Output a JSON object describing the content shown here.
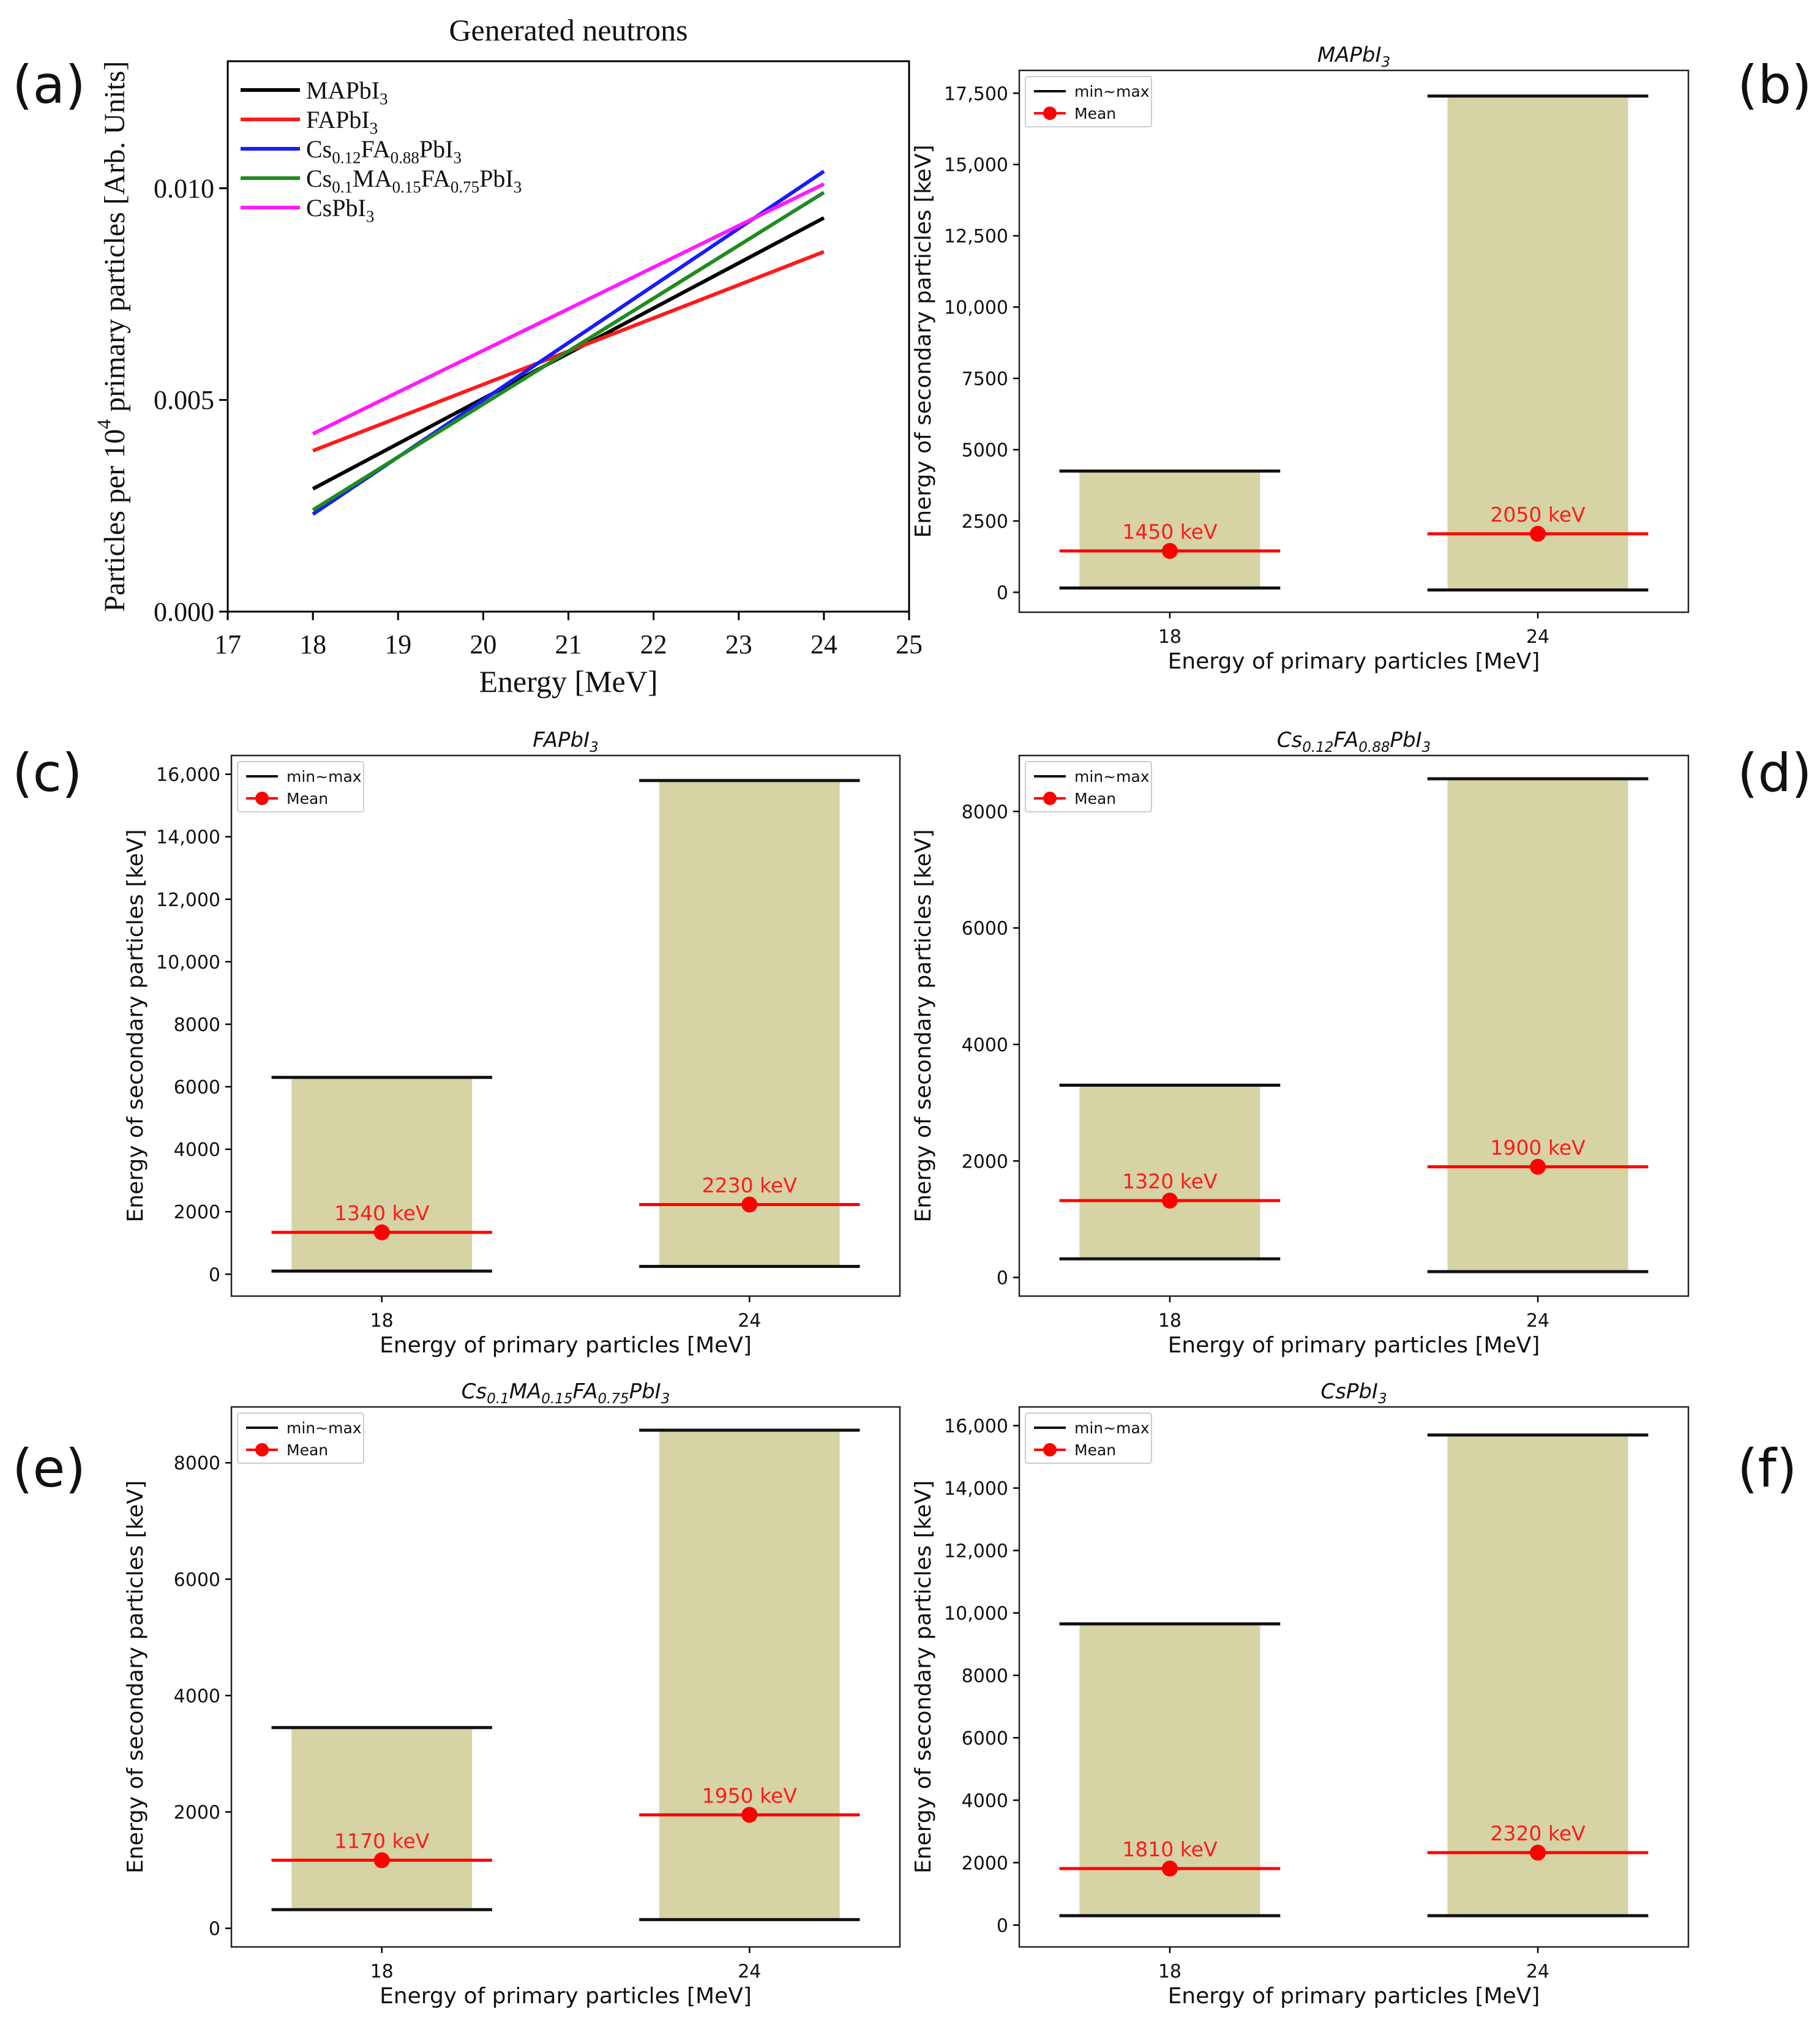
{
  "figure": {
    "panel_labels": [
      "(a)",
      "(b)",
      "(c)",
      "(d)",
      "(e)",
      "(f)"
    ]
  },
  "chart_data": [
    {
      "id": "a",
      "type": "line",
      "title": "Generated neutrons",
      "xlabel": "Energy [MeV]",
      "ylabel_parts": [
        "Particles per 10",
        "4",
        " primary particles [Arb. Units]"
      ],
      "xlim": [
        17,
        25
      ],
      "ylim": [
        0,
        0.013
      ],
      "xticks": [
        17,
        18,
        19,
        20,
        21,
        22,
        23,
        24,
        25
      ],
      "yticks": [
        0.0,
        0.005,
        0.01
      ],
      "ytick_labels": [
        "0.000",
        "0.005",
        "0.010"
      ],
      "legend_position": "upper-left",
      "series": [
        {
          "name": "MAPbI3",
          "label_parts": [
            [
              "MAPbI",
              ""
            ],
            [
              "3",
              "sub"
            ]
          ],
          "color": "#000000",
          "x": [
            18,
            24
          ],
          "values": [
            0.0029,
            0.0093
          ]
        },
        {
          "name": "FAPbI3",
          "label_parts": [
            [
              "FAPbI",
              ""
            ],
            [
              "3",
              "sub"
            ]
          ],
          "color": "#ff1a1a",
          "x": [
            18,
            24
          ],
          "values": [
            0.0038,
            0.0085
          ]
        },
        {
          "name": "Cs0.12FA0.88PbI3",
          "label_parts": [
            [
              "Cs",
              ""
            ],
            [
              "0.12",
              "sub"
            ],
            [
              "FA",
              ""
            ],
            [
              "0.88",
              "sub"
            ],
            [
              "PbI",
              ""
            ],
            [
              "3",
              "sub"
            ]
          ],
          "color": "#1a1aff",
          "x": [
            18,
            24
          ],
          "values": [
            0.0023,
            0.0104
          ]
        },
        {
          "name": "Cs0.1MA0.15FA0.75PbI3",
          "label_parts": [
            [
              "Cs",
              ""
            ],
            [
              "0.1",
              "sub"
            ],
            [
              "MA",
              ""
            ],
            [
              "0.15",
              "sub"
            ],
            [
              "FA",
              ""
            ],
            [
              "0.75",
              "sub"
            ],
            [
              "PbI",
              ""
            ],
            [
              "3",
              "sub"
            ]
          ],
          "color": "#1e8c1e",
          "x": [
            18,
            24
          ],
          "values": [
            0.0024,
            0.0099
          ]
        },
        {
          "name": "CsPbI3",
          "label_parts": [
            [
              "CsPbI",
              ""
            ],
            [
              "3",
              "sub"
            ]
          ],
          "color": "#ff1aff",
          "x": [
            18,
            24
          ],
          "values": [
            0.0042,
            0.0101
          ]
        }
      ]
    },
    {
      "id": "b",
      "type": "bar",
      "title_parts": [
        [
          "MAPbI",
          ""
        ],
        [
          "3",
          "sub"
        ]
      ],
      "xlabel": "Energy of primary particles [MeV]",
      "ylabel": "Energy of secondary particles [keV]",
      "categories": [
        "18",
        "24"
      ],
      "ylim": [
        -700,
        18300
      ],
      "yticks": [
        0,
        2500,
        5000,
        7500,
        10000,
        12500,
        15000,
        17500
      ],
      "ytick_labels": [
        "0",
        "2500",
        "5000",
        "7500",
        "10,000",
        "12,500",
        "15,000",
        "17,500"
      ],
      "min": [
        150,
        80
      ],
      "max": [
        4250,
        17400
      ],
      "mean": [
        1450,
        2050
      ],
      "mean_labels": [
        "1450 keV",
        "2050 keV"
      ],
      "legend": [
        "min~max",
        "Mean"
      ]
    },
    {
      "id": "c",
      "type": "bar",
      "title_parts": [
        [
          "FAPbI",
          ""
        ],
        [
          "3",
          "sub"
        ]
      ],
      "xlabel": "Energy of primary particles [MeV]",
      "ylabel": "Energy of secondary particles [keV]",
      "categories": [
        "18",
        "24"
      ],
      "ylim": [
        -700,
        16600
      ],
      "yticks": [
        0,
        2000,
        4000,
        6000,
        8000,
        10000,
        12000,
        14000,
        16000
      ],
      "ytick_labels": [
        "0",
        "2000",
        "4000",
        "6000",
        "8000",
        "10,000",
        "12,000",
        "14,000",
        "16,000"
      ],
      "min": [
        100,
        250
      ],
      "max": [
        6300,
        15800
      ],
      "mean": [
        1340,
        2230
      ],
      "mean_labels": [
        "1340 keV",
        "2230 keV"
      ],
      "legend": [
        "min~max",
        "Mean"
      ]
    },
    {
      "id": "d",
      "type": "bar",
      "title_parts": [
        [
          "Cs",
          ""
        ],
        [
          "0.12",
          "sub"
        ],
        [
          "FA",
          ""
        ],
        [
          "0.88",
          "sub"
        ],
        [
          "PbI",
          ""
        ],
        [
          "3",
          "sub"
        ]
      ],
      "xlabel": "Energy of primary particles [MeV]",
      "ylabel": "Energy of secondary particles [keV]",
      "categories": [
        "18",
        "24"
      ],
      "ylim": [
        -320,
        8960
      ],
      "yticks": [
        0,
        2000,
        4000,
        6000,
        8000
      ],
      "ytick_labels": [
        "0",
        "2000",
        "4000",
        "6000",
        "8000"
      ],
      "min": [
        320,
        100
      ],
      "max": [
        3300,
        8560
      ],
      "mean": [
        1320,
        1900
      ],
      "mean_labels": [
        "1320 keV",
        "1900 keV"
      ],
      "legend": [
        "min~max",
        "Mean"
      ]
    },
    {
      "id": "e",
      "type": "bar",
      "title_parts": [
        [
          "Cs",
          ""
        ],
        [
          "0.1",
          "sub"
        ],
        [
          "MA",
          ""
        ],
        [
          "0.15",
          "sub"
        ],
        [
          "FA",
          ""
        ],
        [
          "0.75",
          "sub"
        ],
        [
          "PbI",
          ""
        ],
        [
          "3",
          "sub"
        ]
      ],
      "xlabel": "Energy of primary particles [MeV]",
      "ylabel": "Energy of secondary particles [keV]",
      "categories": [
        "18",
        "24"
      ],
      "ylim": [
        -320,
        8960
      ],
      "yticks": [
        0,
        2000,
        4000,
        6000,
        8000
      ],
      "ytick_labels": [
        "0",
        "2000",
        "4000",
        "6000",
        "8000"
      ],
      "min": [
        320,
        150
      ],
      "max": [
        3450,
        8560
      ],
      "mean": [
        1170,
        1950
      ],
      "mean_labels": [
        "1170 keV",
        "1950 keV"
      ],
      "legend": [
        "min~max",
        "Mean"
      ]
    },
    {
      "id": "f",
      "type": "bar",
      "title_parts": [
        [
          "CsPbI",
          ""
        ],
        [
          "3",
          "sub"
        ]
      ],
      "xlabel": "Energy of primary particles [MeV]",
      "ylabel": "Energy of secondary particles [keV]",
      "categories": [
        "18",
        "24"
      ],
      "ylim": [
        -700,
        16600
      ],
      "yticks": [
        0,
        2000,
        4000,
        6000,
        8000,
        10000,
        12000,
        14000,
        16000
      ],
      "ytick_labels": [
        "0",
        "2000",
        "4000",
        "6000",
        "8000",
        "10,000",
        "12,000",
        "14,000",
        "16,000"
      ],
      "min": [
        300,
        300
      ],
      "max": [
        9650,
        15700
      ],
      "mean": [
        1810,
        2320
      ],
      "mean_labels": [
        "1810 keV",
        "2320 keV"
      ],
      "legend": [
        "min~max",
        "Mean"
      ]
    }
  ]
}
